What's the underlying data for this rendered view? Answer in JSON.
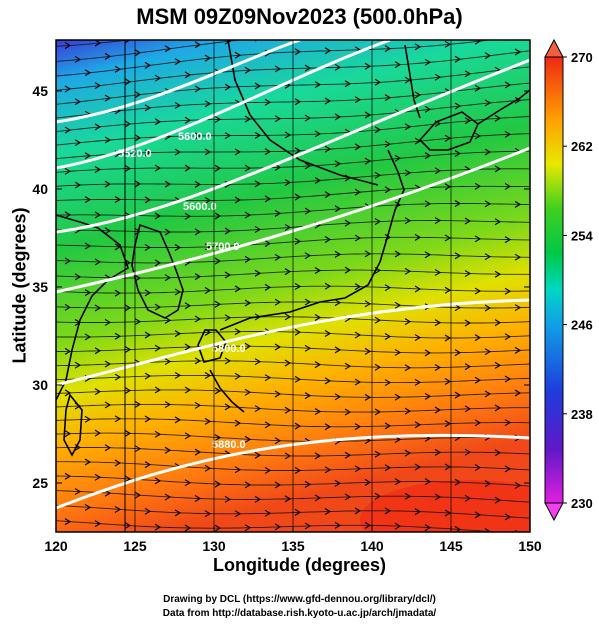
{
  "title": "MSM 09Z09Nov2023 (500.0hPa)",
  "xlabel": "Longitude (degrees)",
  "ylabel": "Latitude  (degrees)",
  "credits": [
    "Drawing by DCL (https://www.gfd-dennou.org/library/dcl/)",
    "Data from http://database.rish.kyoto-u.ac.jp/arch/jmadata/"
  ],
  "map": {
    "lon_range": [
      120,
      150
    ],
    "lat_range": [
      22.5,
      47.6
    ],
    "lon_ticks": [
      "120",
      "125",
      "130",
      "135",
      "140",
      "145",
      "150"
    ],
    "lat_ticks": [
      "25",
      "30",
      "35",
      "40",
      "45"
    ],
    "contour_labels": [
      "5400.0",
      "5520.0",
      "5600.0",
      "5700.0",
      "5800.0",
      "5880.0"
    ],
    "colorbar": {
      "min": 230,
      "max": 270,
      "tick_labels": [
        "270",
        "262",
        "254",
        "246",
        "238",
        "230"
      ],
      "colors": [
        "#cc00cc",
        "#1e3cdc",
        "#00c8e6",
        "#00c846",
        "#ffff00",
        "#ff8c00",
        "#f02814"
      ]
    }
  }
}
